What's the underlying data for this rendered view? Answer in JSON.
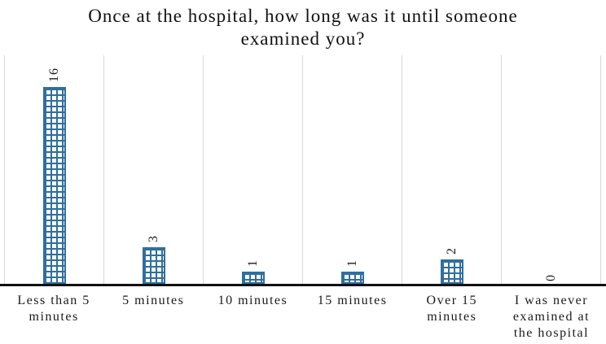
{
  "chart_data": {
    "type": "bar",
    "title": "Once at the hospital, how long was it until someone examined you?",
    "categories": [
      "Less than 5 minutes",
      "5 minutes",
      "10 minutes",
      "15 minutes",
      "Over 15 minutes",
      "I was never examined at the hospital"
    ],
    "values": [
      16,
      3,
      1,
      1,
      2,
      0
    ],
    "xlabel": "",
    "ylabel": "",
    "ylim": [
      0,
      18.8
    ],
    "grid": "vertical category separators only",
    "legend": "none",
    "value_labels": "rotated 90 degrees counterclockwise above each bar",
    "bar_fill_pattern": "grid crosshatch on white",
    "colors": {
      "bar_line": "#2E6F9E",
      "gridline": "#D8D8D8",
      "axis_baseline": "#111111",
      "text": "#1A1A1A",
      "background": "#FFFFFF"
    }
  }
}
